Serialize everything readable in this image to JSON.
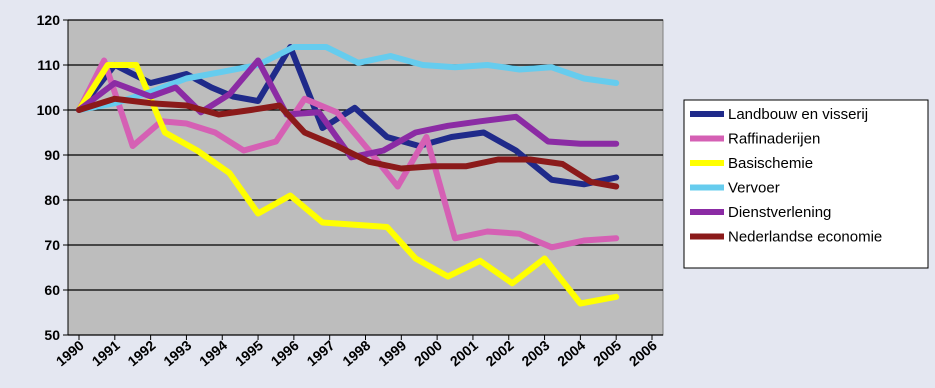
{
  "chart_data": {
    "type": "line",
    "title": "",
    "xlabel": "",
    "ylabel": "",
    "x": [
      "1990",
      "1991",
      "1992",
      "1993",
      "1994",
      "1995",
      "1996",
      "1997",
      "1998",
      "1999",
      "2000",
      "2001",
      "2002",
      "2003",
      "2004",
      "2005",
      "2006"
    ],
    "ylim": [
      50,
      120
    ],
    "yticks": [
      50,
      60,
      70,
      80,
      90,
      100,
      110,
      120
    ],
    "grid": true,
    "legend": "right",
    "plot_background": "#bdbdbd",
    "series": [
      {
        "name": "Landbouw en visserij",
        "color": "#1f2a8a",
        "points": [
          [
            0,
            100
          ],
          [
            1,
            110
          ],
          [
            2,
            106
          ],
          [
            3,
            108
          ],
          [
            3.7,
            105
          ],
          [
            4.3,
            103
          ],
          [
            5,
            102
          ],
          [
            5.9,
            114
          ],
          [
            6.8,
            96
          ],
          [
            7.7,
            100.5
          ],
          [
            8.6,
            94
          ],
          [
            9.5,
            92
          ],
          [
            10.4,
            94
          ],
          [
            11.3,
            95
          ],
          [
            12.2,
            91
          ],
          [
            13.2,
            84.5
          ],
          [
            14.1,
            83.5
          ],
          [
            15.0,
            85
          ]
        ]
      },
      {
        "name": "Raffinaderijen",
        "color": "#d560b4",
        "points": [
          [
            0,
            100
          ],
          [
            0.7,
            111
          ],
          [
            1.5,
            92
          ],
          [
            2.3,
            97.5
          ],
          [
            3.0,
            97
          ],
          [
            3.8,
            95
          ],
          [
            4.6,
            91
          ],
          [
            5.5,
            93
          ],
          [
            6.3,
            102.5
          ],
          [
            7.2,
            99.5
          ],
          [
            8.1,
            91
          ],
          [
            8.9,
            83
          ],
          [
            9.7,
            94
          ],
          [
            10.5,
            71.5
          ],
          [
            11.4,
            73
          ],
          [
            12.3,
            72.5
          ],
          [
            13.2,
            69.5
          ],
          [
            14.1,
            71
          ],
          [
            15.0,
            71.5
          ]
        ]
      },
      {
        "name": "Basischemie",
        "color": "#ffff00",
        "points": [
          [
            0,
            100
          ],
          [
            0.8,
            110
          ],
          [
            1.6,
            110
          ],
          [
            2.4,
            95
          ],
          [
            3.3,
            91
          ],
          [
            4.2,
            86
          ],
          [
            5.0,
            77
          ],
          [
            5.9,
            81
          ],
          [
            6.8,
            75
          ],
          [
            7.7,
            74.5
          ],
          [
            8.6,
            74
          ],
          [
            9.4,
            67
          ],
          [
            10.3,
            63
          ],
          [
            11.2,
            66.5
          ],
          [
            12.1,
            61.5
          ],
          [
            13.0,
            67
          ],
          [
            14.0,
            57
          ],
          [
            15.0,
            58.5
          ]
        ]
      },
      {
        "name": "Vervoer",
        "color": "#66ccee",
        "points": [
          [
            0,
            100
          ],
          [
            1.0,
            101.5
          ],
          [
            2.0,
            104
          ],
          [
            3.0,
            107
          ],
          [
            4.0,
            108.5
          ],
          [
            5.0,
            110
          ],
          [
            6.0,
            114
          ],
          [
            6.9,
            114
          ],
          [
            7.8,
            110.5
          ],
          [
            8.7,
            112
          ],
          [
            9.6,
            110
          ],
          [
            10.5,
            109.5
          ],
          [
            11.4,
            110
          ],
          [
            12.3,
            109
          ],
          [
            13.2,
            109.5
          ],
          [
            14.1,
            107
          ],
          [
            15.0,
            106
          ]
        ]
      },
      {
        "name": "Dienstverlening",
        "color": "#8b2ba4",
        "points": [
          [
            0,
            100
          ],
          [
            1.0,
            106
          ],
          [
            2.0,
            103
          ],
          [
            2.7,
            105
          ],
          [
            3.4,
            99.5
          ],
          [
            4.2,
            103.5
          ],
          [
            5.0,
            111
          ],
          [
            5.8,
            99
          ],
          [
            6.7,
            99.5
          ],
          [
            7.6,
            89.5
          ],
          [
            8.5,
            91
          ],
          [
            9.4,
            95
          ],
          [
            10.3,
            96.5
          ],
          [
            11.2,
            97.5
          ],
          [
            12.2,
            98.5
          ],
          [
            13.1,
            93
          ],
          [
            14.0,
            92.5
          ],
          [
            15.0,
            92.5
          ]
        ]
      },
      {
        "name": "Nederlandse economie",
        "color": "#8b1a1a",
        "points": [
          [
            0,
            100
          ],
          [
            1.0,
            102.5
          ],
          [
            2.0,
            101.5
          ],
          [
            3.0,
            101
          ],
          [
            3.9,
            99
          ],
          [
            4.8,
            100
          ],
          [
            5.6,
            101
          ],
          [
            6.3,
            95
          ],
          [
            7.2,
            92
          ],
          [
            8.1,
            88.5
          ],
          [
            9.0,
            87
          ],
          [
            9.9,
            87.5
          ],
          [
            10.8,
            87.5
          ],
          [
            11.7,
            89
          ],
          [
            12.6,
            89
          ],
          [
            13.5,
            88
          ],
          [
            14.3,
            84
          ],
          [
            15.0,
            83
          ]
        ]
      }
    ]
  }
}
